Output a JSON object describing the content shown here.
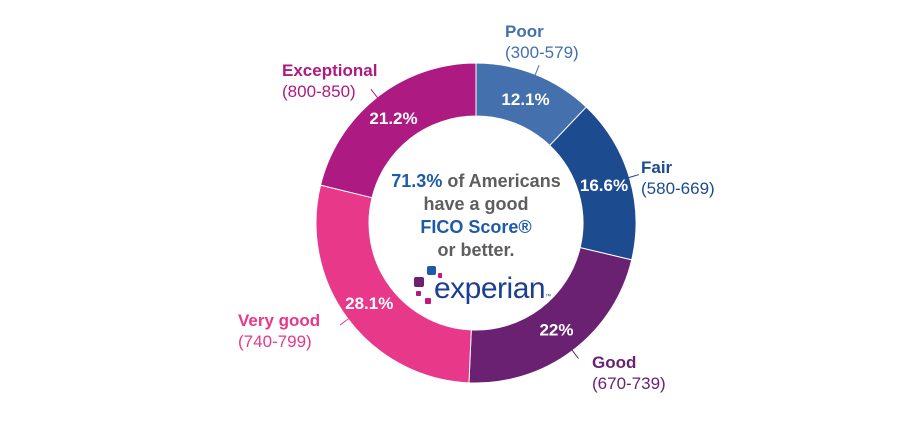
{
  "chart_data": {
    "type": "pie",
    "donut": true,
    "categories": [
      "Poor",
      "Fair",
      "Good",
      "Very good",
      "Exceptional"
    ],
    "ranges": [
      "(300-579)",
      "(580-669)",
      "(670-739)",
      "(740-799)",
      "(800-850)"
    ],
    "values": [
      12.1,
      16.6,
      22,
      28.1,
      21.2
    ],
    "value_labels": [
      "12.1%",
      "16.6%",
      "22%",
      "28.1%",
      "21.2%"
    ],
    "colors": [
      "#4470ad",
      "#1d4b8f",
      "#6b2172",
      "#e8388a",
      "#ad1a82"
    ],
    "legend": "none"
  },
  "center": {
    "highlight": "71.3%",
    "line1_rest": " of Americans",
    "line2": "have a good",
    "line3": "FICO Score®",
    "line4": "or better."
  },
  "logo": {
    "text": "experian",
    "tm": "™"
  }
}
